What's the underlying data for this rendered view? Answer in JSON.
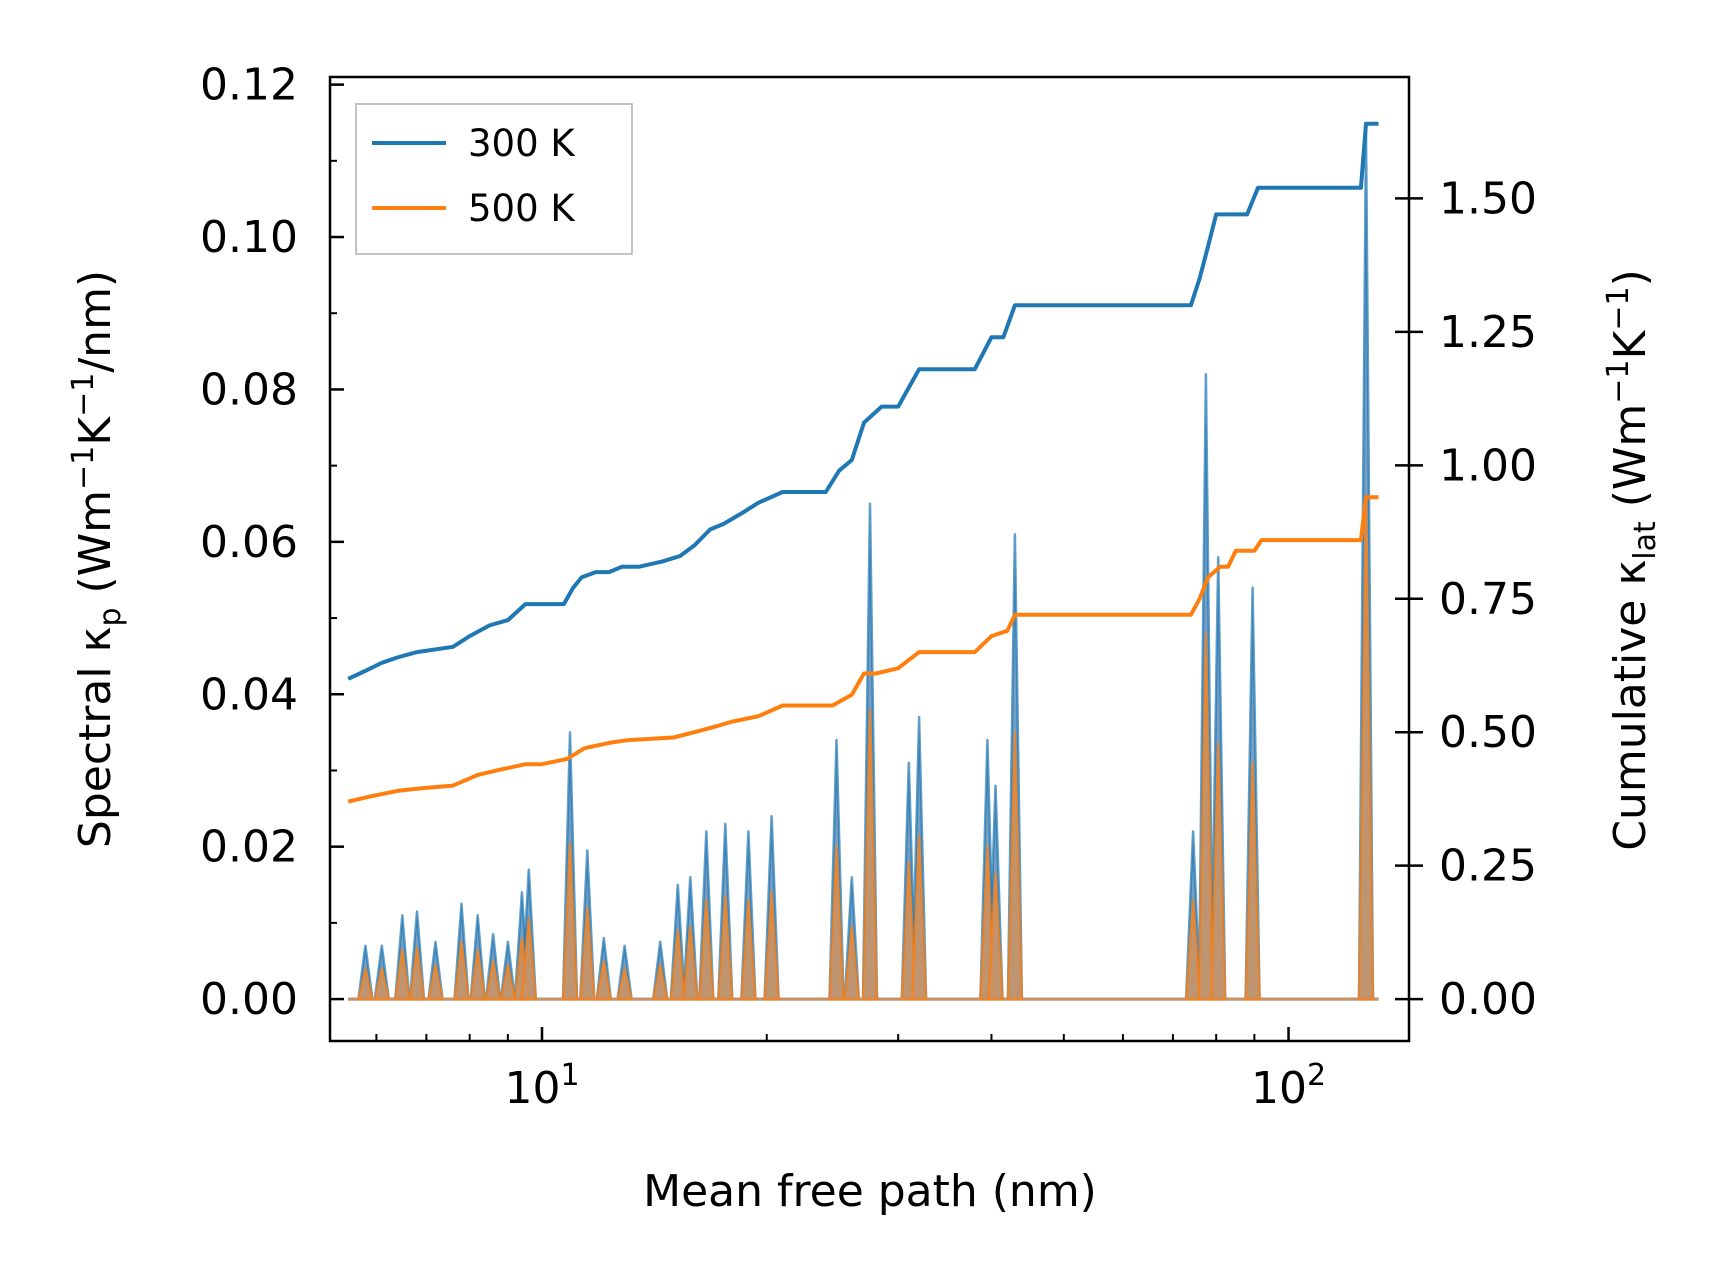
{
  "chart_data": {
    "type": "line",
    "xscale": "log",
    "xlim": [
      5.2,
      145
    ],
    "xlabel": "Mean free path (nm)",
    "x_ticks": [
      {
        "value": 10,
        "base": "10",
        "exp": "1"
      },
      {
        "value": 100,
        "base": "10",
        "exp": "2"
      }
    ],
    "left_axis": {
      "label_main": "Spectral κ",
      "label_sub": "p",
      "label_unit_a": " (Wm",
      "label_sup1": "−1",
      "label_unit_b": "K",
      "label_sup2": "−1",
      "label_unit_c": "/nm)",
      "ylim": [
        -0.0055,
        0.121
      ],
      "ticks": [
        {
          "value": 0.0,
          "label": "0.00"
        },
        {
          "value": 0.02,
          "label": "0.02"
        },
        {
          "value": 0.04,
          "label": "0.04"
        },
        {
          "value": 0.06,
          "label": "0.06"
        },
        {
          "value": 0.08,
          "label": "0.08"
        },
        {
          "value": 0.1,
          "label": "0.10"
        },
        {
          "value": 0.12,
          "label": "0.12"
        }
      ]
    },
    "right_axis": {
      "label_main": "Cumulative κ",
      "label_sub": "lat",
      "label_unit_a": " (Wm",
      "label_sup1": "−1",
      "label_unit_b": "K",
      "label_sup2": "−1",
      "label_unit_c": ")",
      "ylim": [
        -0.0785,
        1.7275
      ],
      "ticks": [
        {
          "value": 0.0,
          "label": "0.00"
        },
        {
          "value": 0.25,
          "label": "0.25"
        },
        {
          "value": 0.5,
          "label": "0.50"
        },
        {
          "value": 0.75,
          "label": "0.75"
        },
        {
          "value": 1.0,
          "label": "1.00"
        },
        {
          "value": 1.25,
          "label": "1.25"
        },
        {
          "value": 1.5,
          "label": "1.50"
        }
      ]
    },
    "legend": {
      "position": "upper-left",
      "entries": [
        {
          "name": "300 K",
          "color": "#1f77b4"
        },
        {
          "name": "500 K",
          "color": "#ff7f0e"
        }
      ]
    },
    "series_cumulative": [
      {
        "name": "300 K",
        "color": "#1f77b4",
        "points": [
          [
            5.5,
            0.6
          ],
          [
            5.7,
            0.61
          ],
          [
            5.9,
            0.62
          ],
          [
            6.1,
            0.63
          ],
          [
            6.4,
            0.64
          ],
          [
            6.8,
            0.65
          ],
          [
            7.6,
            0.66
          ],
          [
            8.0,
            0.68
          ],
          [
            8.5,
            0.7
          ],
          [
            9.0,
            0.71
          ],
          [
            9.5,
            0.74
          ],
          [
            10.7,
            0.74
          ],
          [
            11.0,
            0.77
          ],
          [
            11.3,
            0.79
          ],
          [
            11.8,
            0.8
          ],
          [
            12.3,
            0.8
          ],
          [
            12.8,
            0.81
          ],
          [
            13.5,
            0.81
          ],
          [
            14.5,
            0.82
          ],
          [
            15.3,
            0.83
          ],
          [
            16.0,
            0.85
          ],
          [
            16.8,
            0.88
          ],
          [
            17.5,
            0.89
          ],
          [
            18.5,
            0.91
          ],
          [
            19.5,
            0.93
          ],
          [
            21.0,
            0.95
          ],
          [
            24.0,
            0.95
          ],
          [
            25.0,
            0.99
          ],
          [
            26.0,
            1.01
          ],
          [
            27.0,
            1.08
          ],
          [
            28.5,
            1.11
          ],
          [
            30.0,
            1.11
          ],
          [
            32.0,
            1.18
          ],
          [
            38.0,
            1.18
          ],
          [
            40.0,
            1.24
          ],
          [
            41.5,
            1.24
          ],
          [
            43.0,
            1.3
          ],
          [
            74.0,
            1.3
          ],
          [
            76.0,
            1.35
          ],
          [
            78.0,
            1.41
          ],
          [
            80.0,
            1.47
          ],
          [
            88.0,
            1.47
          ],
          [
            91.0,
            1.52
          ],
          [
            125.0,
            1.52
          ],
          [
            127.0,
            1.64
          ],
          [
            132.0,
            1.64
          ]
        ]
      },
      {
        "name": "500 K",
        "color": "#ff7f0e",
        "points": [
          [
            5.5,
            0.37
          ],
          [
            5.9,
            0.38
          ],
          [
            6.4,
            0.39
          ],
          [
            6.9,
            0.395
          ],
          [
            7.6,
            0.4
          ],
          [
            8.2,
            0.42
          ],
          [
            8.8,
            0.43
          ],
          [
            9.5,
            0.44
          ],
          [
            10.0,
            0.44
          ],
          [
            10.8,
            0.45
          ],
          [
            11.4,
            0.47
          ],
          [
            12.3,
            0.48
          ],
          [
            13.0,
            0.485
          ],
          [
            15.0,
            0.49
          ],
          [
            16.0,
            0.5
          ],
          [
            17.0,
            0.51
          ],
          [
            18.0,
            0.52
          ],
          [
            19.5,
            0.53
          ],
          [
            21.0,
            0.55
          ],
          [
            24.5,
            0.55
          ],
          [
            26.0,
            0.57
          ],
          [
            27.0,
            0.61
          ],
          [
            28.0,
            0.61
          ],
          [
            30.0,
            0.62
          ],
          [
            32.0,
            0.65
          ],
          [
            38.0,
            0.65
          ],
          [
            40.0,
            0.68
          ],
          [
            42.0,
            0.69
          ],
          [
            43.0,
            0.72
          ],
          [
            74.0,
            0.72
          ],
          [
            76.0,
            0.75
          ],
          [
            78.0,
            0.79
          ],
          [
            81.0,
            0.81
          ],
          [
            83.0,
            0.81
          ],
          [
            85.0,
            0.84
          ],
          [
            90.0,
            0.84
          ],
          [
            92.0,
            0.86
          ],
          [
            125.0,
            0.86
          ],
          [
            127.0,
            0.94
          ],
          [
            132.0,
            0.94
          ]
        ]
      }
    ],
    "series_spectral": [
      {
        "name": "300 K",
        "color": "#1f77b4",
        "fill": "#6795bd",
        "peaks": [
          [
            5.8,
            0.007
          ],
          [
            6.1,
            0.007
          ],
          [
            6.5,
            0.011
          ],
          [
            6.8,
            0.0115
          ],
          [
            7.2,
            0.0075
          ],
          [
            7.8,
            0.0125
          ],
          [
            8.2,
            0.011
          ],
          [
            8.6,
            0.0085
          ],
          [
            9.0,
            0.0075
          ],
          [
            9.4,
            0.014
          ],
          [
            9.6,
            0.017
          ],
          [
            10.9,
            0.035
          ],
          [
            11.5,
            0.0195
          ],
          [
            12.1,
            0.008
          ],
          [
            12.9,
            0.007
          ],
          [
            14.4,
            0.0075
          ],
          [
            15.2,
            0.015
          ],
          [
            15.8,
            0.016
          ],
          [
            16.6,
            0.022
          ],
          [
            17.6,
            0.023
          ],
          [
            18.9,
            0.022
          ],
          [
            20.3,
            0.024
          ],
          [
            24.8,
            0.034
          ],
          [
            26.0,
            0.016
          ],
          [
            27.5,
            0.065
          ],
          [
            31.0,
            0.031
          ],
          [
            32.0,
            0.037
          ],
          [
            39.5,
            0.034
          ],
          [
            40.5,
            0.028
          ],
          [
            43.0,
            0.061
          ],
          [
            74.5,
            0.022
          ],
          [
            77.5,
            0.082
          ],
          [
            80.5,
            0.058
          ],
          [
            89.5,
            0.054
          ],
          [
            127.0,
            0.114
          ]
        ]
      },
      {
        "name": "500 K",
        "color": "#ff7f0e",
        "fill": "#c89268",
        "peaks": [
          [
            5.8,
            0.004
          ],
          [
            6.1,
            0.004
          ],
          [
            6.5,
            0.0065
          ],
          [
            6.8,
            0.0068
          ],
          [
            7.2,
            0.0045
          ],
          [
            7.8,
            0.0075
          ],
          [
            8.2,
            0.0065
          ],
          [
            8.6,
            0.005
          ],
          [
            9.0,
            0.0045
          ],
          [
            9.4,
            0.008
          ],
          [
            9.6,
            0.0105
          ],
          [
            10.9,
            0.0205
          ],
          [
            11.5,
            0.012
          ],
          [
            12.1,
            0.005
          ],
          [
            12.9,
            0.004
          ],
          [
            14.4,
            0.0045
          ],
          [
            15.2,
            0.009
          ],
          [
            15.8,
            0.0095
          ],
          [
            16.6,
            0.013
          ],
          [
            17.6,
            0.0135
          ],
          [
            18.9,
            0.013
          ],
          [
            20.3,
            0.014
          ],
          [
            24.8,
            0.02
          ],
          [
            26.0,
            0.0095
          ],
          [
            27.5,
            0.038
          ],
          [
            31.0,
            0.018
          ],
          [
            32.0,
            0.0215
          ],
          [
            39.5,
            0.02
          ],
          [
            40.5,
            0.0165
          ],
          [
            43.0,
            0.035
          ],
          [
            74.5,
            0.013
          ],
          [
            77.5,
            0.048
          ],
          [
            80.5,
            0.0335
          ],
          [
            89.5,
            0.031
          ],
          [
            127.0,
            0.066
          ]
        ]
      }
    ]
  }
}
